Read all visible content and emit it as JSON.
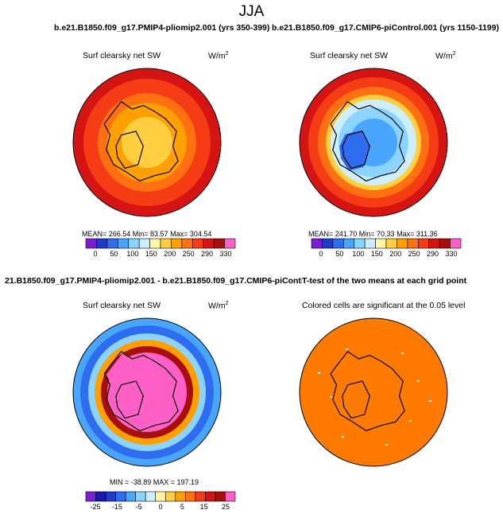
{
  "suptitle": "JJA",
  "panels": [
    {
      "id": "pliomip",
      "run_title": "b.e21.B1850.f09_g17.PMIP4-pliomip2.001 (yrs 350-399)",
      "label": "Surf clearsky net SW",
      "unit": "W/m",
      "unit_exp": "2",
      "stats": "MEAN= 266.54  Min= 83.57  Max= 304.54",
      "colorbar_ticks": [
        "0",
        "50",
        "100",
        "150",
        "200",
        "250",
        "290",
        "330"
      ]
    },
    {
      "id": "picontrol",
      "run_title": "b.e21.B1850.f09_g17.CMIP6-piControl.001 (yrs 1150-1199)",
      "label": "Surf clearsky net SW",
      "unit": "W/m",
      "unit_exp": "2",
      "stats": "MEAN= 241.70  Min= 70.33  Max= 311.36",
      "colorbar_ticks": [
        "0",
        "50",
        "100",
        "150",
        "200",
        "250",
        "290",
        "330"
      ]
    },
    {
      "id": "difference",
      "run_title": "21.B1850.f09_g17.PMIP4-pliomip2.001 - b.e21.B1850.f09_g17.CMIP6-piControl.001",
      "label": "Surf clearsky net SW",
      "unit": "W/m",
      "unit_exp": "2",
      "stats": "MIN = -38.89 MAX = 197.19",
      "colorbar_ticks": [
        "-25",
        "-15",
        "-5",
        "0",
        "5",
        "15",
        "25"
      ]
    },
    {
      "id": "ttest",
      "run_title": "T-test of the two means at each grid point",
      "label": "Colored cells are significant at the 0.05 level"
    }
  ],
  "colors": {
    "abs_scale": [
      "#7a1fd6",
      "#1f3cc8",
      "#2f6df0",
      "#48a6ff",
      "#8ad4ff",
      "#cdeeff",
      "#fff6a8",
      "#ffcf40",
      "#ffa000",
      "#ff7010",
      "#f53c14",
      "#d71414",
      "#a80e0e",
      "#ff60c8"
    ],
    "diff_scale": [
      "#7a1fd6",
      "#1418b4",
      "#1f3cc8",
      "#2f6df0",
      "#48a6ff",
      "#8ad4ff",
      "#cdeeff",
      "#fff6a8",
      "#ffcf40",
      "#ffa000",
      "#ff7010",
      "#f53c14",
      "#d71414",
      "#a80e0e",
      "#ff60c8"
    ],
    "significance": "#ff7b00"
  },
  "chart_data": [
    {
      "type": "heatmap",
      "title": "Surf clearsky net SW",
      "subtitle": "b.e21.B1850.f09_g17.PMIP4-pliomip2.001 (yrs 350-399)",
      "projection": "north polar stereographic",
      "units": "W/m2",
      "mean": 266.54,
      "min": 83.57,
      "max": 304.54,
      "contour_levels": [
        0,
        25,
        50,
        75,
        100,
        125,
        150,
        175,
        200,
        225,
        250,
        270,
        290,
        310,
        330
      ]
    },
    {
      "type": "heatmap",
      "title": "Surf clearsky net SW",
      "subtitle": "b.e21.B1850.f09_g17.CMIP6-piControl.001 (yrs 1150-1199)",
      "projection": "north polar stereographic",
      "units": "W/m2",
      "mean": 241.7,
      "min": 70.33,
      "max": 311.36,
      "contour_levels": [
        0,
        25,
        50,
        75,
        100,
        125,
        150,
        175,
        200,
        225,
        250,
        270,
        290,
        310,
        330
      ]
    },
    {
      "type": "heatmap",
      "title": "Surf clearsky net SW",
      "subtitle": "21.B1850.f09_g17.PMIP4-pliomip2.001 - b.e21.B1850.f09_g17.CMIP6-piControl.001",
      "projection": "north polar stereographic",
      "units": "W/m2",
      "min": -38.89,
      "max": 197.19,
      "contour_levels": [
        -30,
        -25,
        -20,
        -15,
        -10,
        -5,
        -2,
        0,
        2,
        5,
        10,
        15,
        20,
        25,
        30
      ]
    },
    {
      "type": "heatmap",
      "title": "Colored cells are significant at the 0.05 level",
      "subtitle": "T-test of the two means at each grid point",
      "projection": "north polar stereographic"
    }
  ]
}
